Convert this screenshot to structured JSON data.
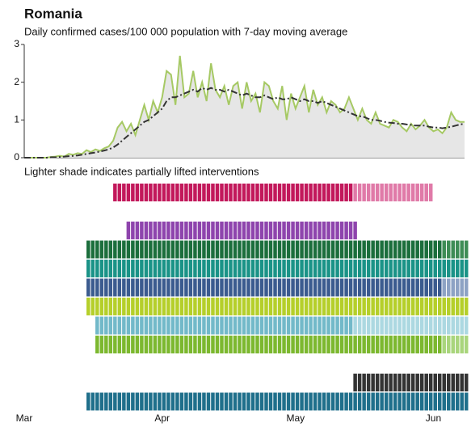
{
  "chart_data": {
    "type": "line",
    "title": "Romania",
    "subtitle": "Daily confirmed cases/100 000 population with 7-day moving average",
    "note": "Lighter shade indicates partially lifted interventions",
    "categories": [
      "Mar",
      null,
      null,
      null,
      null,
      null,
      null,
      null,
      null,
      null,
      null,
      null,
      null,
      null,
      null,
      null,
      null,
      null,
      null,
      null,
      null,
      null,
      null,
      null,
      null,
      null,
      null,
      null,
      null,
      null,
      null,
      "Apr",
      null,
      null,
      null,
      null,
      null,
      null,
      null,
      null,
      null,
      null,
      null,
      null,
      null,
      null,
      null,
      null,
      null,
      null,
      null,
      null,
      null,
      null,
      null,
      null,
      null,
      null,
      null,
      null,
      null,
      "May",
      null,
      null,
      null,
      null,
      null,
      null,
      null,
      null,
      null,
      null,
      null,
      null,
      null,
      null,
      null,
      null,
      null,
      null,
      null,
      null,
      null,
      null,
      null,
      null,
      null,
      null,
      null,
      null,
      null,
      null,
      "Jun",
      null,
      null,
      null,
      null,
      null,
      null,
      null
    ],
    "ylim": [
      0,
      3
    ],
    "yticks": [
      0,
      1,
      2,
      3
    ],
    "series": [
      {
        "color": "#a6c964",
        "area_color": "#e6e6e6",
        "values": [
          0,
          0,
          0,
          0,
          0,
          0,
          0.02,
          0.03,
          0.05,
          0.03,
          0.1,
          0.08,
          0.12,
          0.1,
          0.2,
          0.15,
          0.22,
          0.18,
          0.25,
          0.3,
          0.45,
          0.8,
          0.95,
          0.7,
          0.9,
          0.6,
          1.0,
          1.4,
          1.0,
          1.5,
          1.2,
          1.6,
          2.3,
          2.2,
          1.4,
          2.7,
          1.6,
          1.7,
          2.3,
          1.6,
          2.0,
          1.5,
          2.5,
          1.8,
          1.6,
          1.9,
          1.4,
          1.9,
          2.0,
          1.3,
          2.0,
          1.5,
          1.7,
          1.2,
          2.0,
          1.9,
          1.5,
          1.3,
          1.9,
          1.0,
          1.7,
          1.3,
          1.6,
          1.9,
          1.2,
          1.8,
          1.4,
          1.6,
          1.2,
          1.5,
          1.4,
          1.2,
          1.3,
          1.6,
          1.3,
          1.0,
          1.3,
          1.0,
          0.9,
          1.2,
          0.9,
          0.85,
          0.8,
          1.0,
          0.95,
          0.8,
          0.7,
          0.9,
          0.75,
          0.85,
          1.0,
          0.8,
          0.7,
          0.75,
          0.65,
          0.8,
          1.2,
          1.0,
          0.95,
          0.95
        ]
      },
      {
        "color": "#333333",
        "dashed": true,
        "values": [
          0,
          0,
          0,
          0,
          0,
          0,
          0.01,
          0.01,
          0.02,
          0.03,
          0.04,
          0.05,
          0.06,
          0.08,
          0.1,
          0.12,
          0.14,
          0.16,
          0.19,
          0.22,
          0.27,
          0.35,
          0.45,
          0.55,
          0.65,
          0.75,
          0.85,
          0.95,
          1.0,
          1.1,
          1.2,
          1.3,
          1.5,
          1.6,
          1.6,
          1.65,
          1.7,
          1.75,
          1.8,
          1.75,
          1.85,
          1.8,
          1.85,
          1.8,
          1.8,
          1.75,
          1.8,
          1.75,
          1.7,
          1.65,
          1.7,
          1.65,
          1.6,
          1.6,
          1.65,
          1.6,
          1.55,
          1.6,
          1.55,
          1.55,
          1.6,
          1.55,
          1.5,
          1.55,
          1.5,
          1.5,
          1.45,
          1.5,
          1.45,
          1.4,
          1.35,
          1.3,
          1.25,
          1.2,
          1.15,
          1.1,
          1.1,
          1.05,
          1.0,
          1.0,
          0.98,
          0.95,
          0.93,
          0.92,
          0.9,
          0.9,
          0.88,
          0.87,
          0.85,
          0.85,
          0.85,
          0.82,
          0.8,
          0.8,
          0.78,
          0.8,
          0.82,
          0.85,
          0.88,
          0.9
        ]
      }
    ],
    "interventions": [
      {
        "color": "#c2185b",
        "light_color": "#e07aa8",
        "start": 20,
        "lifted": 74,
        "end": 91
      },
      null,
      {
        "color": "#8e44ad",
        "start": 23,
        "lifted": null,
        "end": 74
      },
      {
        "color": "#1b6e3c",
        "light_color": "#3d8c55",
        "start": 14,
        "lifted": 94,
        "end": 99
      },
      {
        "color": "#1a9387",
        "start": 14,
        "lifted": null,
        "end": 99
      },
      {
        "color": "#3b5b8f",
        "light_color": "#8da2c4",
        "start": 14,
        "lifted": 94,
        "end": 99
      },
      {
        "color": "#b5cf2a",
        "start": 14,
        "lifted": null,
        "end": 99
      },
      {
        "color": "#72b9c9",
        "light_color": "#acd8e1",
        "start": 16,
        "lifted": 74,
        "end": 99
      },
      {
        "color": "#7cb82f",
        "light_color": "#a9d57c",
        "start": 16,
        "lifted": 94,
        "end": 99
      },
      null,
      {
        "color": "#333333",
        "start": 74,
        "lifted": null,
        "end": 99
      },
      {
        "color": "#1f6f8b",
        "start": 14,
        "lifted": null,
        "end": 99
      }
    ]
  }
}
